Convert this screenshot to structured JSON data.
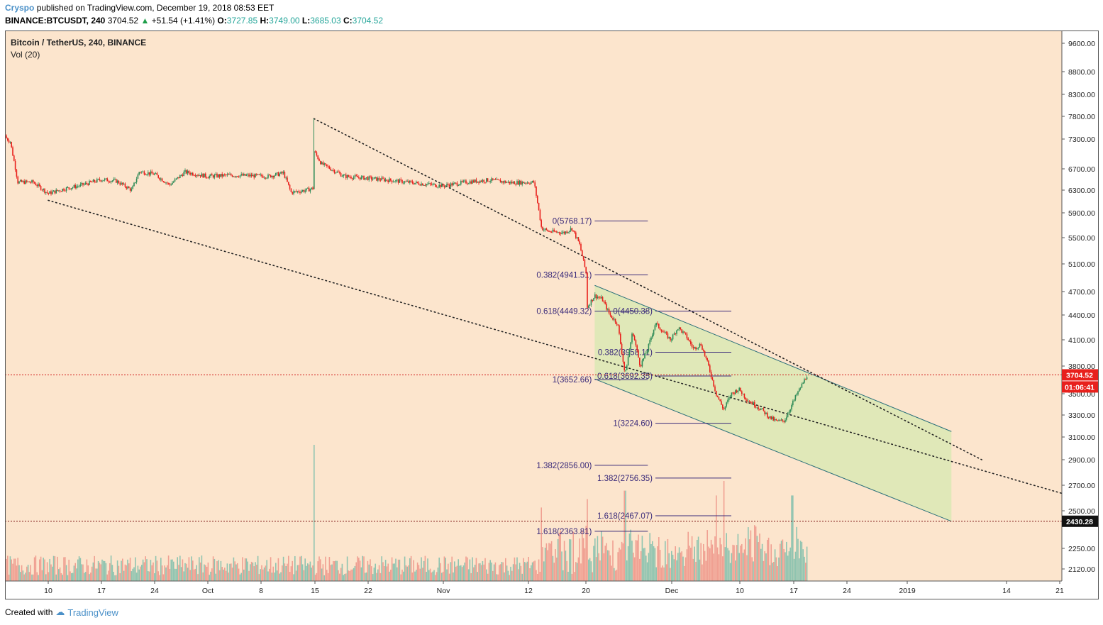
{
  "header": {
    "author": "Cryspo",
    "published": "published on TradingView.com, December 19, 2018 08:53 EET",
    "symbol_line": "BINANCE:BTCUSDT, 240",
    "last": "3704.52",
    "change_arrow": "▲",
    "change": "+51.54 (+1.41%)",
    "o_label": "O:",
    "o_value": "3727.85",
    "h_label": "H:",
    "h_value": "3749.00",
    "l_label": "L:",
    "l_value": "3685.03",
    "c_label": "C:",
    "c_value": "3704.52"
  },
  "footer": {
    "created_with": "Created with",
    "brand": "TradingView"
  },
  "colors": {
    "background": "#fce5cd",
    "up": "#2e8b57",
    "down": "#e8201c",
    "vol_up": "#8fc4b0",
    "vol_down": "#f0a092",
    "fib": "#3a2a7a",
    "channel_fill": "#e0e8b8",
    "channel_line": "#2a6f7a"
  },
  "chart_data": {
    "type": "candlestick",
    "title": "Bitcoin / TetherUS, 240, BINANCE",
    "subtitle": "Vol (20)",
    "price_axis_ticks": [
      "9600.00",
      "8800.00",
      "8300.00",
      "7800.00",
      "7300.00",
      "6700.00",
      "6300.00",
      "5900.00",
      "5500.00",
      "5100.00",
      "4700.00",
      "4400.00",
      "4100.00",
      "3800.00",
      "3500.00",
      "3300.00",
      "3100.00",
      "2900.00",
      "2700.00",
      "2500.00",
      "2250.00",
      "2120.00"
    ],
    "time_axis_ticks": [
      "10",
      "17",
      "24",
      "Oct",
      "8",
      "15",
      "22",
      "Nov",
      "12",
      "20",
      "Dec",
      "10",
      "17",
      "24",
      "2019",
      "14",
      "21"
    ],
    "last_price_label": "3704.52",
    "countdown_label": "01:06:41",
    "level_label": "2430.28",
    "price_path": [
      [
        "2018-09-04",
        7380
      ],
      [
        "2018-09-05",
        7250
      ],
      [
        "2018-09-06",
        6450
      ],
      [
        "2018-09-08",
        6450
      ],
      [
        "2018-09-10",
        6240
      ],
      [
        "2018-09-12",
        6320
      ],
      [
        "2018-09-14",
        6380
      ],
      [
        "2018-09-17",
        6500
      ],
      [
        "2018-09-19",
        6470
      ],
      [
        "2018-09-21",
        6300
      ],
      [
        "2018-09-22",
        6650
      ],
      [
        "2018-09-24",
        6600
      ],
      [
        "2018-09-26",
        6400
      ],
      [
        "2018-09-28",
        6640
      ],
      [
        "2018-10-01",
        6560
      ],
      [
        "2018-10-04",
        6580
      ],
      [
        "2018-10-07",
        6570
      ],
      [
        "2018-10-09",
        6560
      ],
      [
        "2018-10-11",
        6620
      ],
      [
        "2018-10-12",
        6260
      ],
      [
        "2018-10-14",
        6300
      ],
      [
        "2018-10-15",
        6340
      ],
      [
        "2018-10-15",
        7060
      ],
      [
        "2018-10-16",
        6800
      ],
      [
        "2018-10-19",
        6560
      ],
      [
        "2018-10-24",
        6500
      ],
      [
        "2018-10-28",
        6440
      ],
      [
        "2018-11-01",
        6380
      ],
      [
        "2018-11-04",
        6450
      ],
      [
        "2018-11-07",
        6490
      ],
      [
        "2018-11-10",
        6440
      ],
      [
        "2018-11-13",
        6450
      ],
      [
        "2018-11-14",
        5650
      ],
      [
        "2018-11-15",
        5600
      ],
      [
        "2018-11-17",
        5580
      ],
      [
        "2018-11-18",
        5650
      ],
      [
        "2018-11-19",
        5400
      ],
      [
        "2018-11-20",
        4900
      ],
      [
        "2018-11-20",
        4500
      ],
      [
        "2018-11-21",
        4650
      ],
      [
        "2018-11-22",
        4600
      ],
      [
        "2018-11-23",
        4400
      ],
      [
        "2018-11-24",
        4300
      ],
      [
        "2018-11-25",
        3700
      ],
      [
        "2018-11-26",
        4200
      ],
      [
        "2018-11-27",
        3800
      ],
      [
        "2018-11-28",
        4000
      ],
      [
        "2018-11-29",
        4300
      ],
      [
        "2018-11-30",
        4200
      ],
      [
        "2018-12-01",
        4100
      ],
      [
        "2018-12-02",
        4250
      ],
      [
        "2018-12-03",
        4150
      ],
      [
        "2018-12-04",
        4000
      ],
      [
        "2018-12-05",
        4050
      ],
      [
        "2018-12-06",
        3800
      ],
      [
        "2018-12-07",
        3500
      ],
      [
        "2018-12-08",
        3350
      ],
      [
        "2018-12-09",
        3500
      ],
      [
        "2018-12-10",
        3550
      ],
      [
        "2018-12-11",
        3450
      ],
      [
        "2018-12-12",
        3400
      ],
      [
        "2018-12-13",
        3350
      ],
      [
        "2018-12-14",
        3280
      ],
      [
        "2018-12-15",
        3240
      ],
      [
        "2018-12-16",
        3250
      ],
      [
        "2018-12-17",
        3400
      ],
      [
        "2018-12-18",
        3550
      ],
      [
        "2018-12-19",
        3705
      ]
    ],
    "trendlines": [
      {
        "from": [
          "2018-10-15",
          7750
        ],
        "to": [
          "2019-01-11",
          2900
        ]
      },
      {
        "from": [
          "2018-09-10",
          6120
        ],
        "to": [
          "2019-01-26",
          2560
        ]
      }
    ],
    "channel": {
      "upper": [
        [
          "2018-11-21",
          4790
        ],
        [
          "2019-01-07",
          3150
        ]
      ],
      "lower": [
        [
          "2018-11-21",
          3660
        ],
        [
          "2019-01-07",
          2430
        ]
      ]
    },
    "fib_left": {
      "x_end": "2018-11-21",
      "line_end": "2018-11-28",
      "levels": [
        {
          "label": "0(5768.17)",
          "price": 5768.17
        },
        {
          "label": "0.382(4941.51)",
          "price": 4941.51
        },
        {
          "label": "0.618(4449.32)",
          "price": 4449.32
        },
        {
          "label": "1(3652.66)",
          "price": 3652.66
        },
        {
          "label": "1.382(2856.00)",
          "price": 2856.0
        },
        {
          "label": "1.618(2363.81)",
          "price": 2363.81
        }
      ]
    },
    "fib_right": {
      "x_end": "2018-11-29",
      "line_end": "2018-12-09",
      "levels": [
        {
          "label": "0(4450.38)",
          "price": 4450.38
        },
        {
          "label": "0.382(3958.11)",
          "price": 3958.11
        },
        {
          "label": "0.618(3692.35)",
          "price": 3692.35
        },
        {
          "label": "1(3224.60)",
          "price": 3224.6
        },
        {
          "label": "1.382(2756.35)",
          "price": 2756.35
        },
        {
          "label": "1.618(2467.07)",
          "price": 2467.07
        }
      ]
    },
    "volume_spikes": [
      [
        "2018-10-15",
        1.0
      ],
      [
        "2018-11-14",
        0.48
      ],
      [
        "2018-11-20",
        0.55
      ],
      [
        "2018-11-25",
        0.62
      ],
      [
        "2018-12-07",
        0.58
      ],
      [
        "2018-12-08",
        0.7
      ],
      [
        "2018-12-17",
        0.58
      ]
    ]
  }
}
